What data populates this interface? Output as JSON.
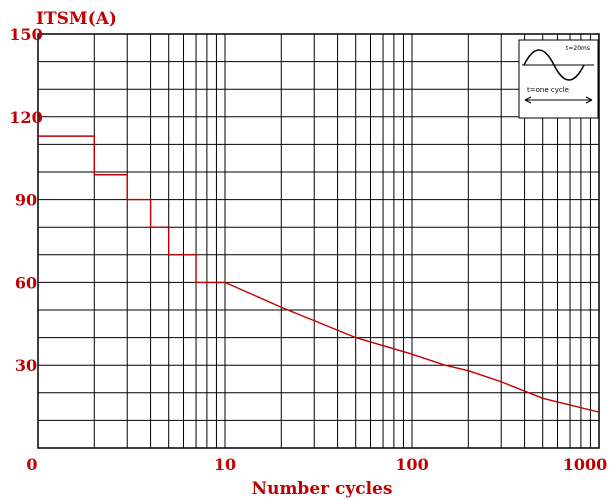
{
  "chart_data": {
    "type": "line",
    "title": "",
    "ylabel": "ITSM(A)",
    "xlabel": "Number cycles",
    "x_scale": "log",
    "xlim": [
      1,
      1000
    ],
    "ylim": [
      0,
      150
    ],
    "grid": true,
    "y_ticks": [
      {
        "value": 0,
        "label": "0"
      },
      {
        "value": 30,
        "label": "30"
      },
      {
        "value": 60,
        "label": "60"
      },
      {
        "value": 90,
        "label": "90"
      },
      {
        "value": 120,
        "label": "120"
      },
      {
        "value": 150,
        "label": "150"
      }
    ],
    "x_ticks": [
      {
        "value": 10,
        "label": "10"
      },
      {
        "value": 100,
        "label": "100"
      },
      {
        "value": 1000,
        "label": "1000"
      }
    ],
    "series": [
      {
        "x": [
          1,
          2,
          2,
          3,
          3,
          4,
          4,
          5,
          5,
          7,
          7,
          10,
          20,
          50,
          100,
          150,
          200,
          300,
          500,
          1000
        ],
        "y": [
          113,
          113,
          99,
          99,
          90,
          90,
          80,
          80,
          70,
          70,
          60,
          60,
          51,
          40,
          34,
          30,
          28,
          24,
          18,
          13
        ]
      }
    ],
    "colors": {
      "line": "#c00000",
      "grid": "#000000",
      "text": "#c00000"
    },
    "inset": {
      "t_label": "t=20ms",
      "cycle_label": "t=one cycle"
    }
  }
}
